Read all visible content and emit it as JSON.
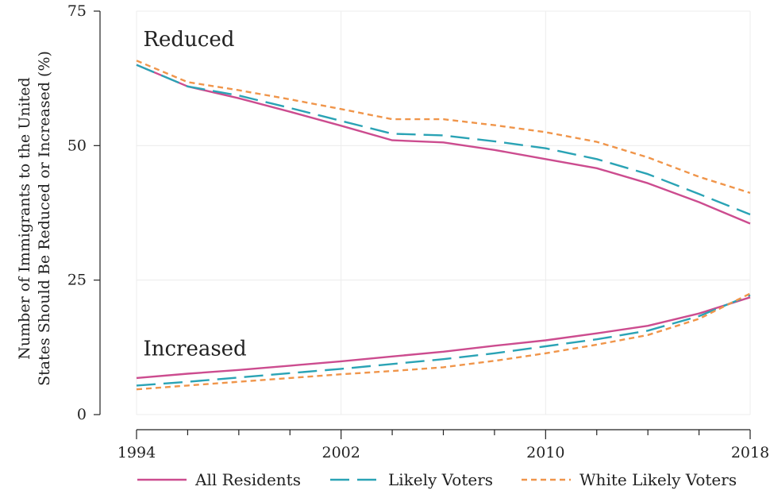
{
  "chart_data": {
    "type": "line",
    "title": "",
    "xlabel": "",
    "ylabel_lines": [
      "Number of Immigrants to the United",
      "States Should Be Reduced or Increased (%)"
    ],
    "x_ticks_major": [
      1994,
      2002,
      2010,
      2018
    ],
    "x_ticks_minor": [
      1994,
      1996,
      1998,
      2000,
      2002,
      2004,
      2006,
      2008,
      2010,
      2012,
      2014,
      2016,
      2018
    ],
    "y_ticks": [
      0,
      25,
      50,
      75
    ],
    "xlim": [
      1994,
      2018
    ],
    "ylim": [
      0,
      75
    ],
    "grid": true,
    "legend_position": "bottom",
    "annotations": [
      {
        "text": "Reduced",
        "x": 1994.2,
        "y": 70
      },
      {
        "text": "Increased",
        "x": 1994.2,
        "y": 12.5
      }
    ],
    "x": [
      1994,
      1996,
      1998,
      2000,
      2002,
      2004,
      2006,
      2008,
      2010,
      2012,
      2014,
      2016,
      2018
    ],
    "series": [
      {
        "name": "All Residents",
        "color": "#cc4c8f",
        "dash": "solid",
        "reduced": [
          65,
          61,
          58.8,
          56.3,
          53.7,
          51,
          50.6,
          49.2,
          47.5,
          45.8,
          43,
          39.5,
          35.5
        ],
        "increased": [
          6.8,
          7.6,
          8.3,
          9.1,
          9.9,
          10.8,
          11.7,
          12.8,
          13.8,
          15.1,
          16.5,
          18.8,
          21.8
        ]
      },
      {
        "name": "Likely Voters",
        "color": "#2aa3b5",
        "dash": "long",
        "reduced": [
          65,
          61,
          59.3,
          57,
          54.6,
          52.2,
          51.9,
          50.8,
          49.5,
          47.5,
          44.7,
          41,
          37.2
        ],
        "increased": [
          5.4,
          6.1,
          6.9,
          7.7,
          8.5,
          9.4,
          10.3,
          11.4,
          12.7,
          14,
          15.6,
          18.3,
          22.2
        ]
      },
      {
        "name": "White Likely Voters",
        "color": "#f0954a",
        "dash": "short",
        "reduced": [
          65.8,
          61.8,
          60.3,
          58.6,
          56.8,
          54.9,
          54.9,
          53.8,
          52.5,
          50.7,
          47.8,
          44.2,
          41.2
        ],
        "increased": [
          4.7,
          5.4,
          6.1,
          6.8,
          7.5,
          8.1,
          8.8,
          10,
          11.4,
          13,
          14.8,
          17.8,
          22.5
        ]
      }
    ]
  }
}
